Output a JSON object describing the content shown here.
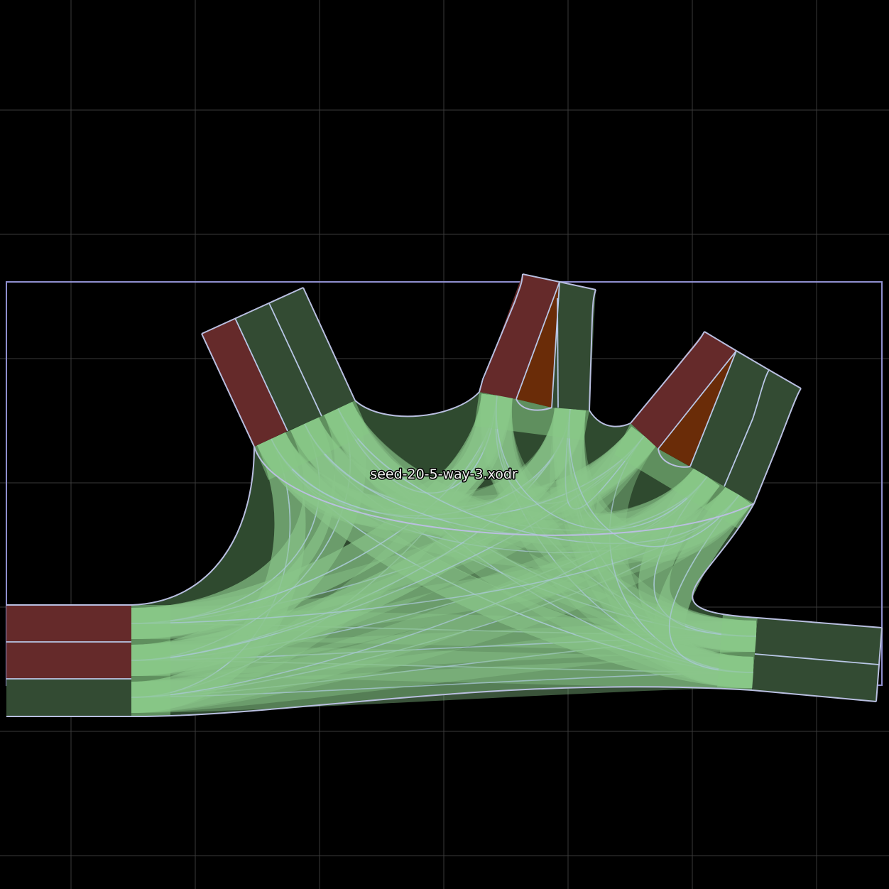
{
  "scene": {
    "file_label": "seed-20-5-way-3.xodr",
    "colors": {
      "background": "#000000",
      "grid": "#3a3a3a",
      "bounding_box": "#8f8fcf",
      "lane_outgoing": "#334b33",
      "lane_incoming": "#652a2a",
      "lane_turn": "#6a2c08",
      "junction_fill": "#86c985",
      "lane_boundary": "#b9bfe0"
    }
  }
}
